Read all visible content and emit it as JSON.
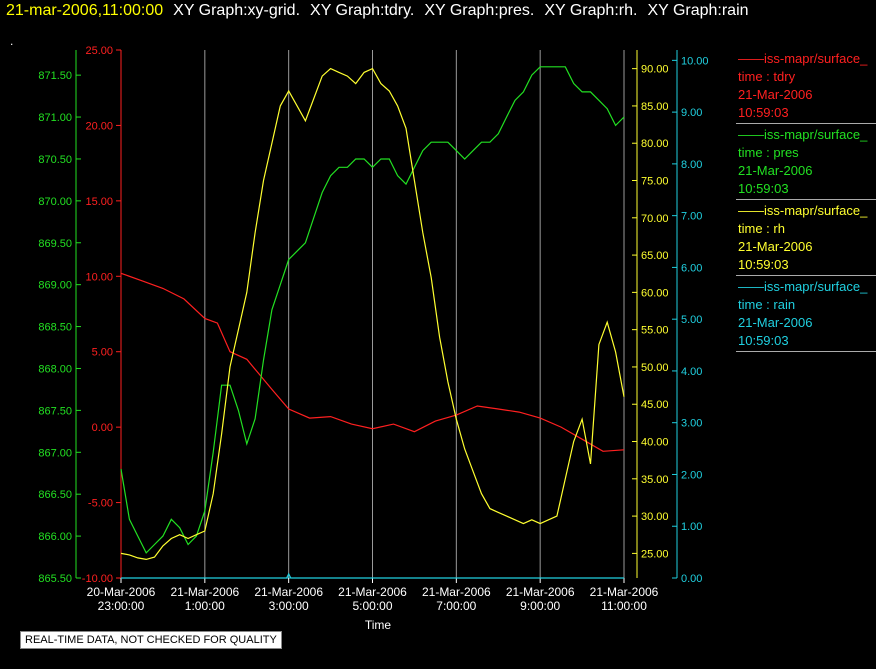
{
  "header": {
    "timestamp": "21-mar-2006,11:00:00",
    "graphs": [
      "XY Graph:xy-grid.",
      "XY Graph:tdry.",
      "XY Graph:pres.",
      "XY Graph:rh.",
      "XY Graph:rain"
    ],
    "dot": "."
  },
  "footer": {
    "quality_note": "REAL-TIME DATA, NOT CHECKED FOR QUALITY"
  },
  "legend": [
    {
      "source": "iss-mapr/surface_",
      "var": "time : tdry",
      "date": "21-Mar-2006",
      "time": "10:59:03",
      "color": "#ff2020"
    },
    {
      "source": "iss-mapr/surface_",
      "var": "time : pres",
      "date": "21-Mar-2006",
      "time": "10:59:03",
      "color": "#22e022"
    },
    {
      "source": "iss-mapr/surface_",
      "var": "time : rh",
      "date": "21-Mar-2006",
      "time": "10:59:03",
      "color": "#ffff30"
    },
    {
      "source": "iss-mapr/surface_",
      "var": "time : rain",
      "date": "21-Mar-2006",
      "time": "10:59:03",
      "color": "#20d0e0"
    }
  ],
  "chart_data": {
    "type": "line",
    "xlabel": "Time",
    "x_ticks": [
      {
        "t": -1,
        "l1": "20-Mar-2006",
        "l2": "23:00:00"
      },
      {
        "t": 1,
        "l1": "21-Mar-2006",
        "l2": "1:00:00"
      },
      {
        "t": 3,
        "l1": "21-Mar-2006",
        "l2": "3:00:00"
      },
      {
        "t": 5,
        "l1": "21-Mar-2006",
        "l2": "5:00:00"
      },
      {
        "t": 7,
        "l1": "21-Mar-2006",
        "l2": "7:00:00"
      },
      {
        "t": 9,
        "l1": "21-Mar-2006",
        "l2": "9:00:00"
      },
      {
        "t": 11,
        "l1": "21-Mar-2006",
        "l2": "11:00:00"
      }
    ],
    "xlim": [
      -1,
      11
    ],
    "grid": true,
    "axes": [
      {
        "id": "tdry",
        "color": "#ff2020",
        "ylim": [
          -10,
          25
        ],
        "ticks": [
          "25.00",
          "20.00",
          "15.00",
          "10.00",
          "5.00",
          "0.00",
          "-5.00",
          "-10.00"
        ],
        "tick_vals": [
          25,
          20,
          15,
          10,
          5,
          0,
          -5,
          -10
        ]
      },
      {
        "id": "pres",
        "color": "#22e022",
        "ylim": [
          865.5,
          871.8
        ],
        "ticks": [
          "871.50",
          "871.00",
          "870.50",
          "870.00",
          "869.50",
          "869.00",
          "868.50",
          "868.00",
          "867.50",
          "867.00",
          "866.50",
          "866.00",
          "865.50"
        ],
        "tick_vals": [
          871.5,
          871,
          870.5,
          870,
          869.5,
          869,
          868.5,
          868,
          867.5,
          867,
          866.5,
          866,
          865.5
        ]
      },
      {
        "id": "rh",
        "color": "#ffff30",
        "ylim": [
          21.7,
          92.5
        ],
        "ticks": [
          "90.00",
          "85.00",
          "80.00",
          "75.00",
          "70.00",
          "65.00",
          "60.00",
          "55.00",
          "50.00",
          "45.00",
          "40.00",
          "35.00",
          "30.00",
          "25.00"
        ],
        "tick_vals": [
          90,
          85,
          80,
          75,
          70,
          65,
          60,
          55,
          50,
          45,
          40,
          35,
          30,
          25
        ]
      },
      {
        "id": "rain",
        "color": "#20d0e0",
        "ylim": [
          0,
          10.2
        ],
        "ticks": [
          "10.00",
          "9.00",
          "8.00",
          "7.00",
          "6.00",
          "5.00",
          "4.00",
          "3.00",
          "2.00",
          "1.00",
          "0.00"
        ],
        "tick_vals": [
          10,
          9,
          8,
          7,
          6,
          5,
          4,
          3,
          2,
          1,
          0
        ]
      }
    ],
    "series": [
      {
        "name": "time : tdry",
        "axis": "tdry",
        "color": "#ff2020",
        "x": [
          -1,
          -0.5,
          0,
          0.5,
          1,
          1.3,
          1.6,
          2,
          2.3,
          2.6,
          3,
          3.5,
          4,
          4.5,
          5,
          5.5,
          6,
          6.5,
          7,
          7.5,
          8,
          8.5,
          9,
          9.5,
          10,
          10.5,
          11
        ],
        "y": [
          10.2,
          9.7,
          9.2,
          8.5,
          7.2,
          6.9,
          5.0,
          4.5,
          3.5,
          2.5,
          1.2,
          0.6,
          0.7,
          0.2,
          -0.1,
          0.2,
          -0.3,
          0.4,
          0.8,
          1.4,
          1.2,
          1.0,
          0.6,
          0.0,
          -0.8,
          -1.6,
          -1.5
        ]
      },
      {
        "name": "time : pres",
        "axis": "pres",
        "color": "#22e022",
        "x": [
          -1,
          -0.8,
          -0.6,
          -0.4,
          -0.2,
          0,
          0.2,
          0.4,
          0.6,
          0.8,
          1,
          1.2,
          1.4,
          1.6,
          1.8,
          2,
          2.2,
          2.4,
          2.6,
          2.8,
          3,
          3.2,
          3.4,
          3.6,
          3.8,
          4,
          4.2,
          4.4,
          4.6,
          4.8,
          5,
          5.2,
          5.4,
          5.6,
          5.8,
          6,
          6.2,
          6.4,
          6.6,
          6.8,
          7,
          7.2,
          7.4,
          7.6,
          7.8,
          8,
          8.2,
          8.4,
          8.6,
          8.8,
          9,
          9.2,
          9.4,
          9.6,
          9.8,
          10,
          10.2,
          10.4,
          10.6,
          10.8,
          11
        ],
        "y": [
          866.8,
          866.2,
          866.0,
          865.8,
          865.9,
          866.0,
          866.2,
          866.1,
          865.9,
          866.0,
          866.3,
          867.0,
          867.8,
          867.8,
          867.5,
          867.1,
          867.4,
          868.1,
          868.7,
          869.0,
          869.3,
          869.4,
          869.5,
          869.8,
          870.1,
          870.3,
          870.4,
          870.4,
          870.5,
          870.5,
          870.4,
          870.5,
          870.5,
          870.3,
          870.2,
          870.4,
          870.6,
          870.7,
          870.7,
          870.7,
          870.6,
          870.5,
          870.6,
          870.7,
          870.7,
          870.8,
          871.0,
          871.2,
          871.3,
          871.5,
          871.6,
          871.6,
          871.6,
          871.6,
          871.4,
          871.3,
          871.3,
          871.2,
          871.1,
          870.9,
          871.0
        ]
      },
      {
        "name": "time : rh",
        "axis": "rh",
        "color": "#ffff30",
        "x": [
          -1,
          -0.8,
          -0.6,
          -0.4,
          -0.2,
          0,
          0.2,
          0.4,
          0.6,
          0.8,
          1,
          1.2,
          1.4,
          1.6,
          1.8,
          2,
          2.2,
          2.4,
          2.6,
          2.8,
          3,
          3.2,
          3.4,
          3.6,
          3.8,
          4,
          4.2,
          4.4,
          4.6,
          4.8,
          5,
          5.2,
          5.4,
          5.6,
          5.8,
          6,
          6.2,
          6.4,
          6.6,
          6.8,
          7,
          7.2,
          7.4,
          7.6,
          7.8,
          8,
          8.2,
          8.4,
          8.6,
          8.8,
          9,
          9.2,
          9.4,
          9.6,
          9.8,
          10,
          10.2,
          10.4,
          10.6,
          10.8,
          11
        ],
        "y": [
          25.0,
          24.8,
          24.4,
          24.2,
          24.5,
          26.0,
          27.0,
          27.5,
          27.0,
          27.5,
          28.0,
          33.0,
          41.0,
          50.0,
          55.0,
          60.0,
          68.0,
          75.0,
          80.0,
          85.0,
          87.0,
          85.0,
          83.0,
          86.0,
          89.0,
          90.0,
          89.5,
          89.0,
          88.0,
          89.5,
          90.0,
          88.0,
          87.0,
          85.0,
          82.0,
          75.0,
          68.0,
          62.0,
          54.0,
          48.0,
          43.0,
          39.0,
          36.0,
          33.0,
          31.0,
          30.5,
          30.0,
          29.5,
          29.0,
          29.5,
          29.0,
          29.5,
          30.0,
          35.0,
          40.0,
          43.0,
          37.0,
          53.0,
          56.0,
          52.0,
          46.0
        ]
      },
      {
        "name": "time : rain",
        "axis": "rain",
        "color": "#20d0e0",
        "x": [
          -1,
          2.95,
          3.0,
          3.05,
          11
        ],
        "y": [
          0.0,
          0.0,
          0.08,
          0.0,
          0.0
        ]
      }
    ]
  }
}
